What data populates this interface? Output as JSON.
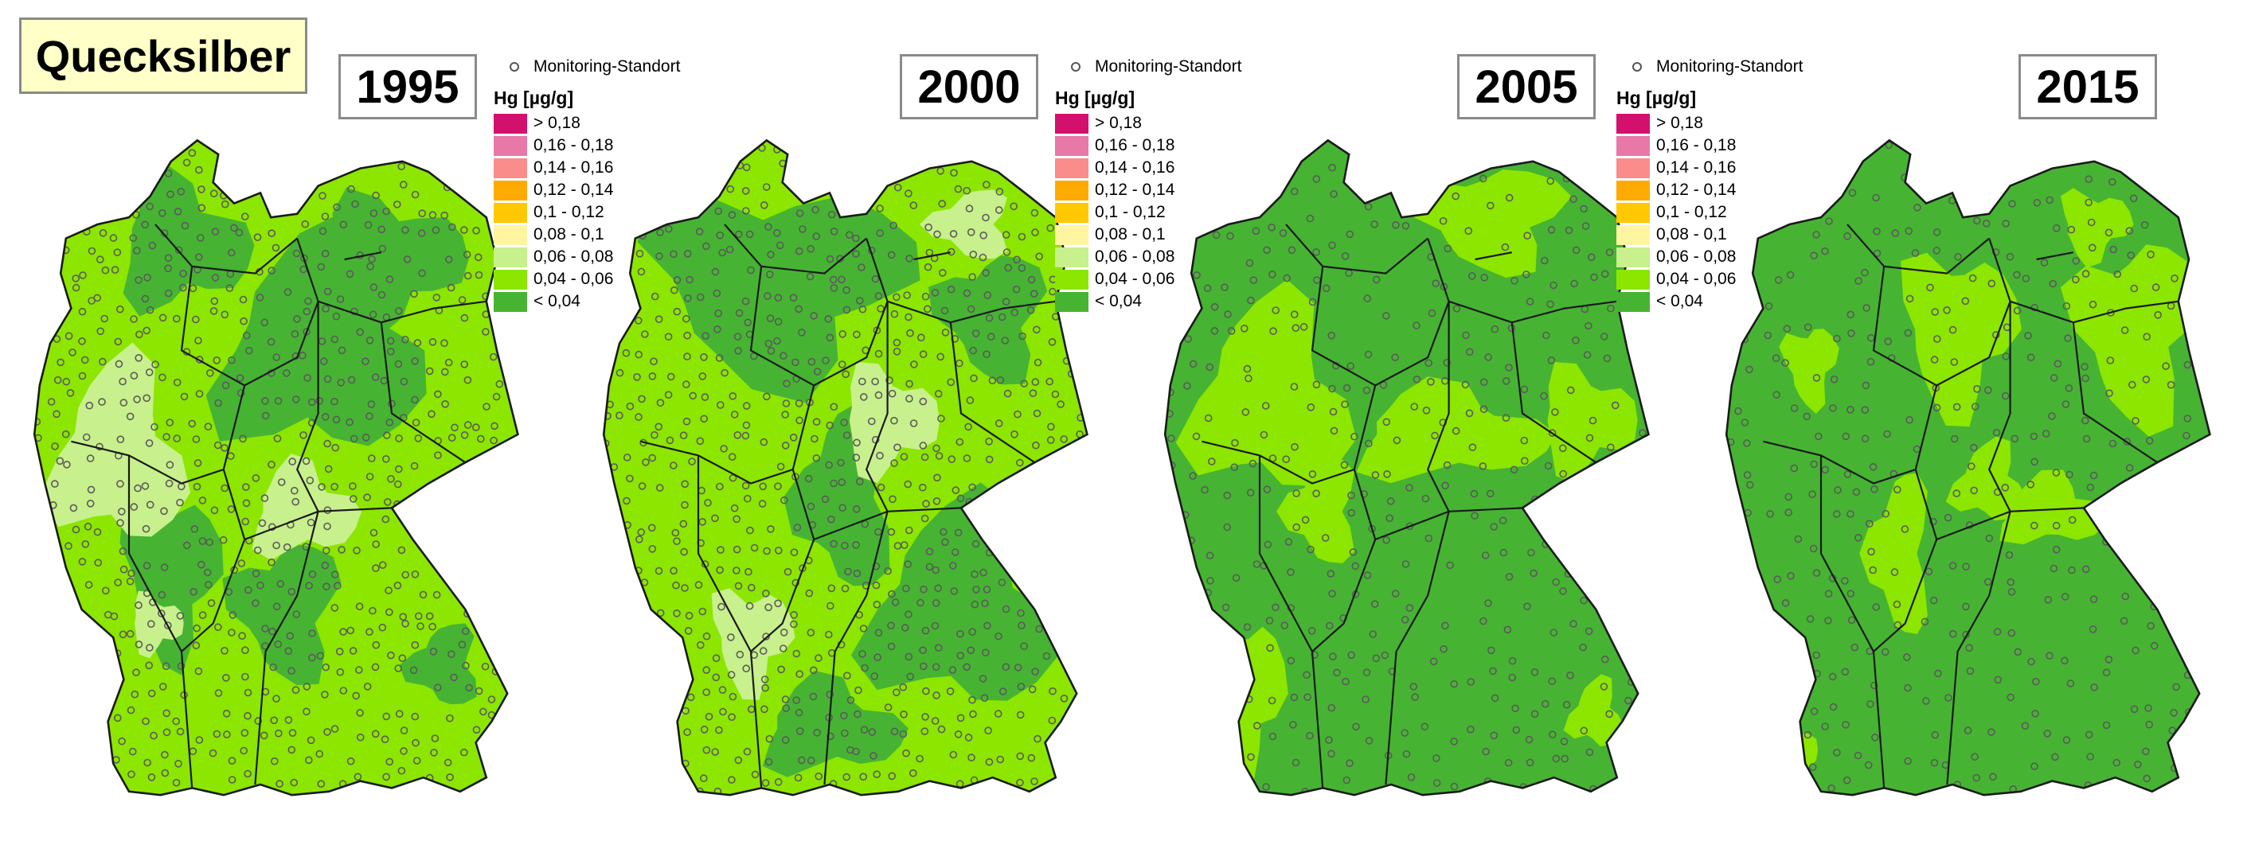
{
  "title": "Quecksilber",
  "legend": {
    "monitoring_label": "Monitoring-Standort",
    "unit_heading": "Hg [µg/g]",
    "classes": [
      {
        "label": "> 0,18",
        "color": "#d4106e"
      },
      {
        "label": "0,16 - 0,18",
        "color": "#e878a8"
      },
      {
        "label": "0,14 - 0,16",
        "color": "#fa8c8c"
      },
      {
        "label": "0,12 - 0,14",
        "color": "#ffaa00"
      },
      {
        "label": "0,1 - 0,12",
        "color": "#ffc800"
      },
      {
        "label": "0,08 - 0,1",
        "color": "#fff5a0"
      },
      {
        "label": "0,06 - 0,08",
        "color": "#c8f08c"
      },
      {
        "label": "0,04 - 0,06",
        "color": "#8ce600"
      },
      {
        "label": "< 0,04",
        "color": "#46b432"
      }
    ]
  },
  "maps": [
    {
      "year": "1995"
    },
    {
      "year": "2000"
    },
    {
      "year": "2005"
    },
    {
      "year": "2015"
    }
  ]
}
